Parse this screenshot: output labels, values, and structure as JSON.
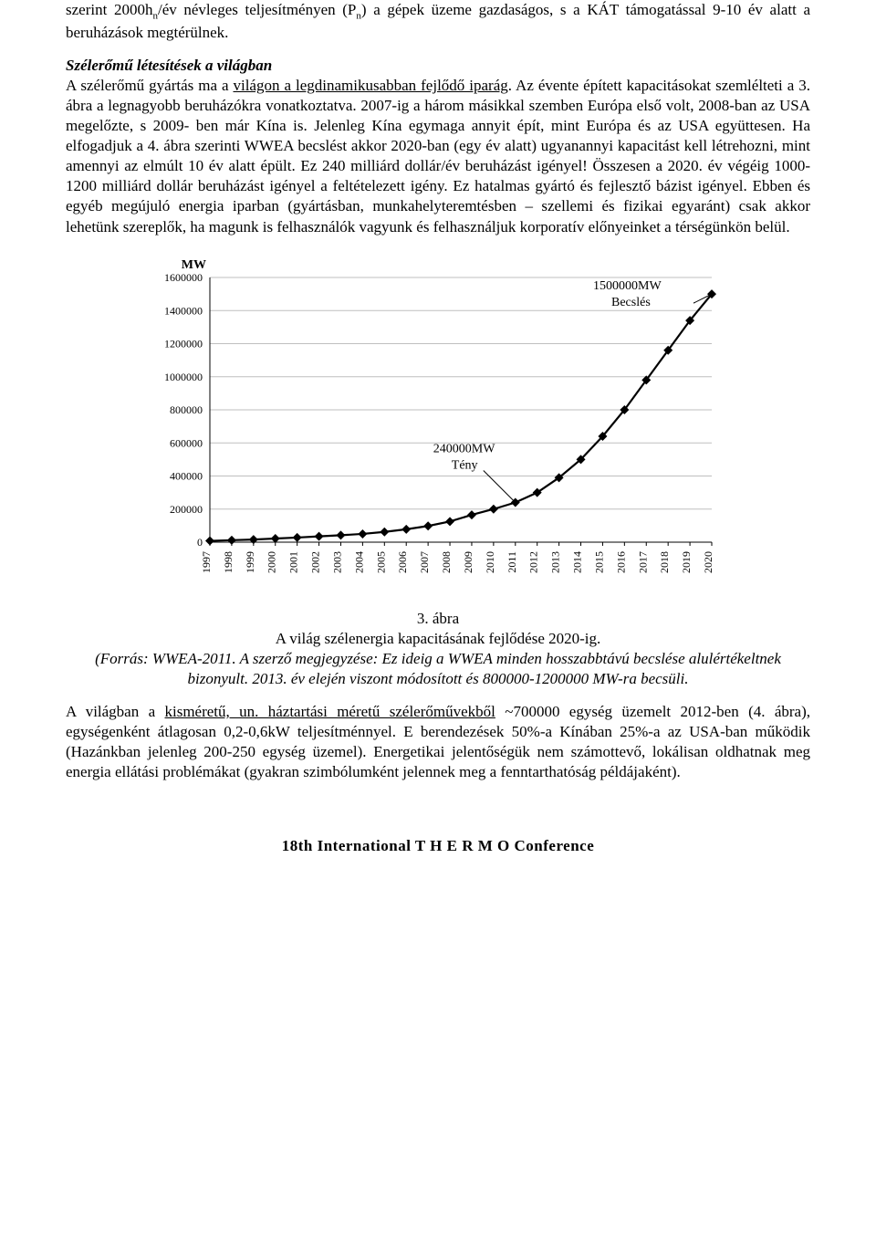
{
  "para1_a": "szerint 2000h",
  "para1_sub": "n",
  "para1_b": "/év névleges teljesítményen (P",
  "para1_sub2": "n",
  "para1_c": ") a gépek üzeme gazdaságos, s a KÁT támogatással 9-10 év alatt a beruházások megtérülnek.",
  "section_head": "Szélerőmű létesítések a világban",
  "para2_a": "A szélerőmű gyártás ma a ",
  "para2_underline": "világon a legdinamikusabban fejlődő iparág",
  "para2_b": ". Az évente épített kapacitásokat szemlélteti a 3. ábra a legnagyobb beruházókra vonatkoztatva. 2007-ig a három másikkal szemben Európa első volt, 2008-ban az USA megelőzte, s 2009- ben már Kína is. Jelenleg Kína egymaga annyit épít, mint Európa és az USA együttesen. Ha elfogadjuk a 4. ábra szerinti WWEA becslést akkor 2020-ban (egy év alatt) ugyanannyi kapacitást kell létrehozni, mint amennyi az elmúlt 10 év alatt épült. Ez 240 milliárd dollár/év beruházást igényel! Összesen a 2020. év végéig 1000-1200 milliárd dollár beruházást igényel a feltételezett igény. Ez hatalmas gyártó és fejlesztő bázist igényel. Ebben és egyéb megújuló energia iparban (gyártásban, munkahelyteremtésben – szellemi és fizikai egyaránt) csak akkor lehetünk szereplők, ha magunk is felhasználók vagyunk és felhasználjuk korporatív előnyeinket a térségünkön belül.",
  "chart": {
    "type": "line",
    "y_title": "MW",
    "y_ticks": [
      0,
      200000,
      400000,
      600000,
      800000,
      1000000,
      1200000,
      1400000,
      1600000
    ],
    "x_labels": [
      "1997",
      "1998",
      "1999",
      "2000",
      "2001",
      "2002",
      "2003",
      "2004",
      "2005",
      "2006",
      "2007",
      "2008",
      "2009",
      "2010",
      "2011",
      "2012",
      "2013",
      "2014",
      "2015",
      "2016",
      "2017",
      "2018",
      "2019",
      "2020"
    ],
    "values": [
      8000,
      12000,
      16000,
      22000,
      28000,
      35000,
      42000,
      50000,
      62000,
      78000,
      98000,
      125000,
      165000,
      200000,
      240000,
      300000,
      390000,
      500000,
      640000,
      800000,
      980000,
      1160000,
      1340000,
      1500000
    ],
    "annotations": [
      {
        "label1": "240000MW",
        "label2": "Tény",
        "x_index": 14,
        "value": 240000
      },
      {
        "label1": "1500000MW",
        "label2": "Becslés",
        "x_index": 23,
        "value": 1500000
      }
    ],
    "colors": {
      "line": "#000000",
      "marker": "#000000",
      "grid": "#bfbfbf",
      "axis": "#000000",
      "background": "#ffffff"
    },
    "line_width": 2.2,
    "marker_size": 5
  },
  "fig_number": "3. ábra",
  "fig_title": "A világ szélenergia kapacitásának fejlődése 2020-ig.",
  "fig_source": "(Forrás: WWEA-2011. A szerző megjegyzése: Ez ideig a WWEA minden hosszabbtávú becslése alulértékeltnek bizonyult. 2013. év elején viszont módosított és 800000-1200000 MW-ra becsüli.",
  "para3_a": "A világban a ",
  "para3_underline": "kisméretű, un. háztartási méretű szélerőművekből",
  "para3_b": " ~700000 egység üzemelt 2012-ben (4. ábra), egységenként átlagosan 0,2-0,6kW teljesítménnyel. E berendezések 50%-a Kínában 25%-a az USA-ban működik (Hazánkban jelenleg 200-250 egység üzemel). Energetikai jelentőségük nem számottevő, lokálisan oldhatnak meg energia ellátási problémákat (gyakran szimbólumként jelennek meg a fenntarthatóság példájaként).",
  "footer": "18th International T H E R M O Conference"
}
